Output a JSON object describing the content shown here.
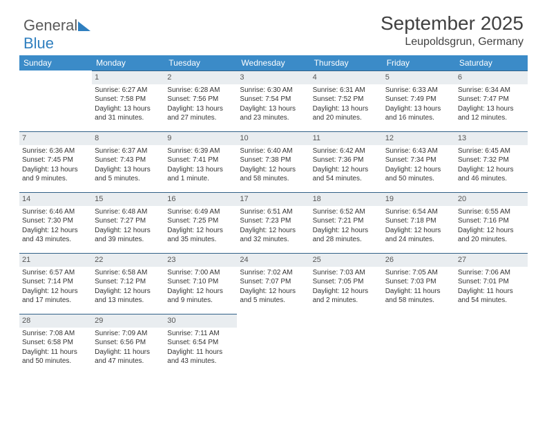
{
  "brand": {
    "part1": "General",
    "part2": "Blue"
  },
  "title": "September 2025",
  "location": "Leupoldsgrun, Germany",
  "header_bg": "#3b8bc8",
  "daybar_bg": "#e9edf0",
  "daybar_border": "#2f5f86",
  "days_of_week": [
    "Sunday",
    "Monday",
    "Tuesday",
    "Wednesday",
    "Thursday",
    "Friday",
    "Saturday"
  ],
  "first_weekday": 1,
  "num_days": 30,
  "cells": {
    "1": {
      "sunrise": "6:27 AM",
      "sunset": "7:58 PM",
      "daylight": "13 hours and 31 minutes."
    },
    "2": {
      "sunrise": "6:28 AM",
      "sunset": "7:56 PM",
      "daylight": "13 hours and 27 minutes."
    },
    "3": {
      "sunrise": "6:30 AM",
      "sunset": "7:54 PM",
      "daylight": "13 hours and 23 minutes."
    },
    "4": {
      "sunrise": "6:31 AM",
      "sunset": "7:52 PM",
      "daylight": "13 hours and 20 minutes."
    },
    "5": {
      "sunrise": "6:33 AM",
      "sunset": "7:49 PM",
      "daylight": "13 hours and 16 minutes."
    },
    "6": {
      "sunrise": "6:34 AM",
      "sunset": "7:47 PM",
      "daylight": "13 hours and 12 minutes."
    },
    "7": {
      "sunrise": "6:36 AM",
      "sunset": "7:45 PM",
      "daylight": "13 hours and 9 minutes."
    },
    "8": {
      "sunrise": "6:37 AM",
      "sunset": "7:43 PM",
      "daylight": "13 hours and 5 minutes."
    },
    "9": {
      "sunrise": "6:39 AM",
      "sunset": "7:41 PM",
      "daylight": "13 hours and 1 minute."
    },
    "10": {
      "sunrise": "6:40 AM",
      "sunset": "7:38 PM",
      "daylight": "12 hours and 58 minutes."
    },
    "11": {
      "sunrise": "6:42 AM",
      "sunset": "7:36 PM",
      "daylight": "12 hours and 54 minutes."
    },
    "12": {
      "sunrise": "6:43 AM",
      "sunset": "7:34 PM",
      "daylight": "12 hours and 50 minutes."
    },
    "13": {
      "sunrise": "6:45 AM",
      "sunset": "7:32 PM",
      "daylight": "12 hours and 46 minutes."
    },
    "14": {
      "sunrise": "6:46 AM",
      "sunset": "7:30 PM",
      "daylight": "12 hours and 43 minutes."
    },
    "15": {
      "sunrise": "6:48 AM",
      "sunset": "7:27 PM",
      "daylight": "12 hours and 39 minutes."
    },
    "16": {
      "sunrise": "6:49 AM",
      "sunset": "7:25 PM",
      "daylight": "12 hours and 35 minutes."
    },
    "17": {
      "sunrise": "6:51 AM",
      "sunset": "7:23 PM",
      "daylight": "12 hours and 32 minutes."
    },
    "18": {
      "sunrise": "6:52 AM",
      "sunset": "7:21 PM",
      "daylight": "12 hours and 28 minutes."
    },
    "19": {
      "sunrise": "6:54 AM",
      "sunset": "7:18 PM",
      "daylight": "12 hours and 24 minutes."
    },
    "20": {
      "sunrise": "6:55 AM",
      "sunset": "7:16 PM",
      "daylight": "12 hours and 20 minutes."
    },
    "21": {
      "sunrise": "6:57 AM",
      "sunset": "7:14 PM",
      "daylight": "12 hours and 17 minutes."
    },
    "22": {
      "sunrise": "6:58 AM",
      "sunset": "7:12 PM",
      "daylight": "12 hours and 13 minutes."
    },
    "23": {
      "sunrise": "7:00 AM",
      "sunset": "7:10 PM",
      "daylight": "12 hours and 9 minutes."
    },
    "24": {
      "sunrise": "7:02 AM",
      "sunset": "7:07 PM",
      "daylight": "12 hours and 5 minutes."
    },
    "25": {
      "sunrise": "7:03 AM",
      "sunset": "7:05 PM",
      "daylight": "12 hours and 2 minutes."
    },
    "26": {
      "sunrise": "7:05 AM",
      "sunset": "7:03 PM",
      "daylight": "11 hours and 58 minutes."
    },
    "27": {
      "sunrise": "7:06 AM",
      "sunset": "7:01 PM",
      "daylight": "11 hours and 54 minutes."
    },
    "28": {
      "sunrise": "7:08 AM",
      "sunset": "6:58 PM",
      "daylight": "11 hours and 50 minutes."
    },
    "29": {
      "sunrise": "7:09 AM",
      "sunset": "6:56 PM",
      "daylight": "11 hours and 47 minutes."
    },
    "30": {
      "sunrise": "7:11 AM",
      "sunset": "6:54 PM",
      "daylight": "11 hours and 43 minutes."
    }
  },
  "labels": {
    "sunrise": "Sunrise: ",
    "sunset": "Sunset: ",
    "daylight": "Daylight: "
  }
}
